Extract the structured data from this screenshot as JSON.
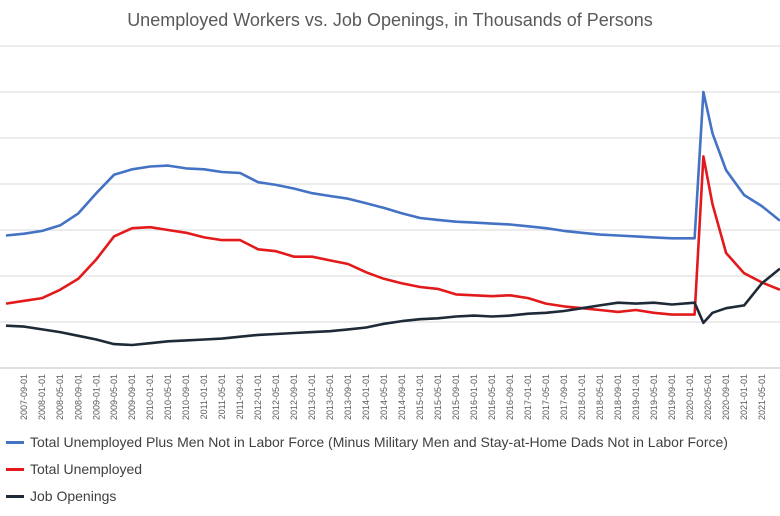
{
  "chart_data": {
    "type": "line",
    "title": "Unemployed Workers vs. Job Openings, in Thousands of Persons",
    "xlabel": "",
    "ylabel": "",
    "grid": true,
    "legend_position": "bottom",
    "x_tick_labels": [
      "2007-09-01",
      "2008-01-01",
      "2008-05-01",
      "2008-09-01",
      "2009-01-01",
      "2009-05-01",
      "2009-09-01",
      "2010-01-01",
      "2010-05-01",
      "2010-09-01",
      "2011-01-01",
      "2011-05-01",
      "2011-09-01",
      "2012-01-01",
      "2012-05-01",
      "2012-09-01",
      "2013-01-01",
      "2013-05-01",
      "2013-09-01",
      "2014-01-01",
      "2014-05-01",
      "2014-09-01",
      "2015-01-01",
      "2015-05-01",
      "2015-09-01",
      "2016-01-01",
      "2016-05-01",
      "2016-09-01",
      "2017-01-01",
      "2017-05-01",
      "2017-09-01",
      "2018-01-01",
      "2018-05-01",
      "2018-09-01",
      "2019-01-01",
      "2019-05-01",
      "2019-09-01",
      "2020-01-01",
      "2020-05-01",
      "2020-09-01",
      "2021-01-01",
      "2021-05-01"
    ],
    "series": [
      {
        "name": "Total Unemployed Plus Men Not in Labor Force (Minus Military Men and Stay-at-Home Dads Not in Labor Force)",
        "color": "#4472C4",
        "points": [
          [
            "2007-05-01",
            14400
          ],
          [
            "2007-09-01",
            14600
          ],
          [
            "2008-01-01",
            14900
          ],
          [
            "2008-05-01",
            15500
          ],
          [
            "2008-09-01",
            16800
          ],
          [
            "2009-01-01",
            19000
          ],
          [
            "2009-05-01",
            21000
          ],
          [
            "2009-09-01",
            21600
          ],
          [
            "2010-01-01",
            21900
          ],
          [
            "2010-05-01",
            22000
          ],
          [
            "2010-09-01",
            21700
          ],
          [
            "2011-01-01",
            21600
          ],
          [
            "2011-05-01",
            21300
          ],
          [
            "2011-09-01",
            21200
          ],
          [
            "2012-01-01",
            20200
          ],
          [
            "2012-05-01",
            19900
          ],
          [
            "2012-09-01",
            19500
          ],
          [
            "2013-01-01",
            19000
          ],
          [
            "2013-05-01",
            18700
          ],
          [
            "2013-09-01",
            18400
          ],
          [
            "2014-01-01",
            17900
          ],
          [
            "2014-05-01",
            17400
          ],
          [
            "2014-09-01",
            16800
          ],
          [
            "2015-01-01",
            16300
          ],
          [
            "2015-05-01",
            16100
          ],
          [
            "2015-09-01",
            15900
          ],
          [
            "2016-01-01",
            15800
          ],
          [
            "2016-05-01",
            15700
          ],
          [
            "2016-09-01",
            15600
          ],
          [
            "2017-01-01",
            15400
          ],
          [
            "2017-05-01",
            15200
          ],
          [
            "2017-09-01",
            14900
          ],
          [
            "2018-01-01",
            14700
          ],
          [
            "2018-05-01",
            14500
          ],
          [
            "2018-09-01",
            14400
          ],
          [
            "2019-01-01",
            14300
          ],
          [
            "2019-05-01",
            14200
          ],
          [
            "2019-09-01",
            14100
          ],
          [
            "2020-02-01",
            14100
          ],
          [
            "2020-04-01",
            30000
          ],
          [
            "2020-06-01",
            25500
          ],
          [
            "2020-09-01",
            21500
          ],
          [
            "2021-01-01",
            18800
          ],
          [
            "2021-05-01",
            17600
          ],
          [
            "2021-09-01",
            16000
          ]
        ]
      },
      {
        "name": "Total Unemployed",
        "color": "#E31A1C",
        "points": [
          [
            "2007-05-01",
            7000
          ],
          [
            "2007-09-01",
            7300
          ],
          [
            "2008-01-01",
            7600
          ],
          [
            "2008-05-01",
            8500
          ],
          [
            "2008-09-01",
            9700
          ],
          [
            "2009-01-01",
            11800
          ],
          [
            "2009-05-01",
            14300
          ],
          [
            "2009-09-01",
            15200
          ],
          [
            "2010-01-01",
            15300
          ],
          [
            "2010-05-01",
            15000
          ],
          [
            "2010-09-01",
            14700
          ],
          [
            "2011-01-01",
            14200
          ],
          [
            "2011-05-01",
            13900
          ],
          [
            "2011-09-01",
            13900
          ],
          [
            "2012-01-01",
            12900
          ],
          [
            "2012-05-01",
            12700
          ],
          [
            "2012-09-01",
            12100
          ],
          [
            "2013-01-01",
            12100
          ],
          [
            "2013-05-01",
            11700
          ],
          [
            "2013-09-01",
            11300
          ],
          [
            "2014-01-01",
            10400
          ],
          [
            "2014-05-01",
            9700
          ],
          [
            "2014-09-01",
            9200
          ],
          [
            "2015-01-01",
            8800
          ],
          [
            "2015-05-01",
            8600
          ],
          [
            "2015-09-01",
            8000
          ],
          [
            "2016-01-01",
            7900
          ],
          [
            "2016-05-01",
            7800
          ],
          [
            "2016-09-01",
            7900
          ],
          [
            "2017-01-01",
            7600
          ],
          [
            "2017-05-01",
            7000
          ],
          [
            "2017-09-01",
            6700
          ],
          [
            "2018-01-01",
            6500
          ],
          [
            "2018-05-01",
            6300
          ],
          [
            "2018-09-01",
            6100
          ],
          [
            "2019-01-01",
            6300
          ],
          [
            "2019-05-01",
            6000
          ],
          [
            "2019-09-01",
            5800
          ],
          [
            "2020-02-01",
            5800
          ],
          [
            "2020-04-01",
            23000
          ],
          [
            "2020-06-01",
            17800
          ],
          [
            "2020-09-01",
            12500
          ],
          [
            "2021-01-01",
            10300
          ],
          [
            "2021-05-01",
            9300
          ],
          [
            "2021-09-01",
            8500
          ]
        ]
      },
      {
        "name": "Job Openings",
        "color": "#1F2A38",
        "points": [
          [
            "2007-05-01",
            4600
          ],
          [
            "2007-09-01",
            4500
          ],
          [
            "2008-01-01",
            4200
          ],
          [
            "2008-05-01",
            3900
          ],
          [
            "2008-09-01",
            3500
          ],
          [
            "2009-01-01",
            3100
          ],
          [
            "2009-05-01",
            2600
          ],
          [
            "2009-09-01",
            2500
          ],
          [
            "2010-01-01",
            2700
          ],
          [
            "2010-05-01",
            2900
          ],
          [
            "2010-09-01",
            3000
          ],
          [
            "2011-01-01",
            3100
          ],
          [
            "2011-05-01",
            3200
          ],
          [
            "2011-09-01",
            3400
          ],
          [
            "2012-01-01",
            3600
          ],
          [
            "2012-05-01",
            3700
          ],
          [
            "2012-09-01",
            3800
          ],
          [
            "2013-01-01",
            3900
          ],
          [
            "2013-05-01",
            4000
          ],
          [
            "2013-09-01",
            4200
          ],
          [
            "2014-01-01",
            4400
          ],
          [
            "2014-05-01",
            4800
          ],
          [
            "2014-09-01",
            5100
          ],
          [
            "2015-01-01",
            5300
          ],
          [
            "2015-05-01",
            5400
          ],
          [
            "2015-09-01",
            5600
          ],
          [
            "2016-01-01",
            5700
          ],
          [
            "2016-05-01",
            5600
          ],
          [
            "2016-09-01",
            5700
          ],
          [
            "2017-01-01",
            5900
          ],
          [
            "2017-05-01",
            6000
          ],
          [
            "2017-09-01",
            6200
          ],
          [
            "2018-01-01",
            6500
          ],
          [
            "2018-05-01",
            6800
          ],
          [
            "2018-09-01",
            7100
          ],
          [
            "2019-01-01",
            7000
          ],
          [
            "2019-05-01",
            7100
          ],
          [
            "2019-09-01",
            6900
          ],
          [
            "2020-02-01",
            7100
          ],
          [
            "2020-04-01",
            4900
          ],
          [
            "2020-06-01",
            6000
          ],
          [
            "2020-09-01",
            6500
          ],
          [
            "2021-01-01",
            6800
          ],
          [
            "2021-05-01",
            9200
          ],
          [
            "2021-09-01",
            10800
          ]
        ]
      }
    ]
  }
}
